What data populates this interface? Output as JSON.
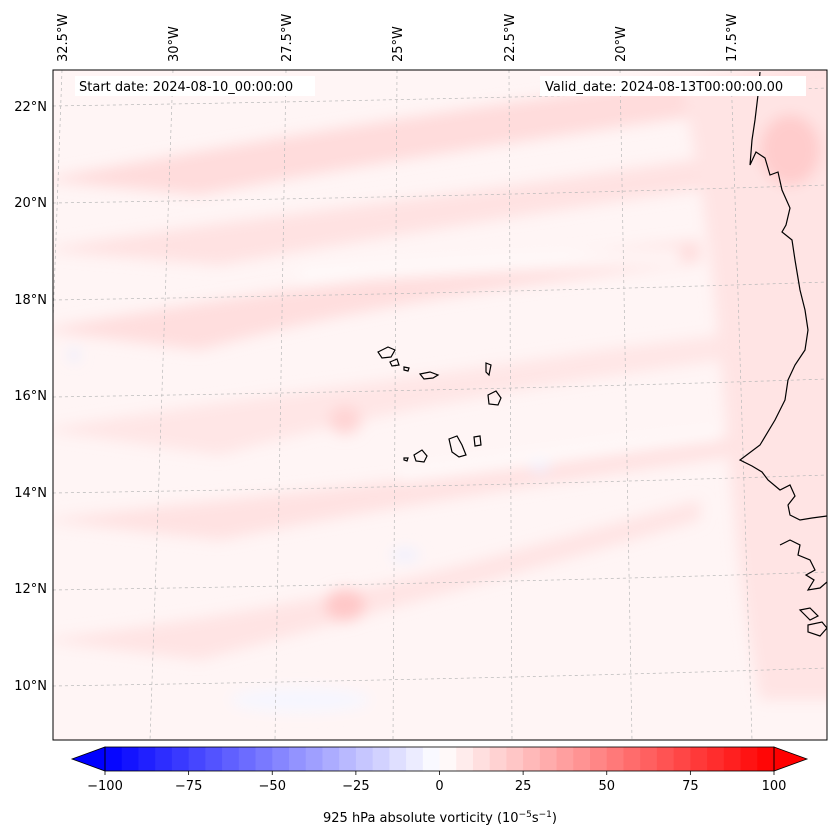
{
  "map": {
    "start_date": "Start date: 2024-08-10_00:00:00",
    "valid_date": "Valid_date: 2024-08-13T00:00:00.00",
    "lon_labels": [
      "32.5°W",
      "30°W",
      "27.5°W",
      "25°W",
      "22.5°W",
      "20°W",
      "17.5°W"
    ],
    "lat_labels": [
      "22°N",
      "20°N",
      "18°N",
      "16°N",
      "14°N",
      "12°N",
      "10°N"
    ],
    "gridlines": true
  },
  "colorbar": {
    "ticks": [
      "−100",
      "−75",
      "−50",
      "−25",
      "0",
      "25",
      "50",
      "75",
      "100"
    ],
    "tick_values": [
      -100,
      -75,
      -50,
      -25,
      0,
      25,
      50,
      75,
      100
    ],
    "range": [
      -100,
      100
    ],
    "extend": "both",
    "colormap": "bwr",
    "label_main": "925 hPa absolute vorticity (10",
    "label_exp1": "−5",
    "label_mid": "s",
    "label_exp2": "−1",
    "label_end": ")"
  },
  "colors": {
    "min": "#0000ff",
    "mid": "#ffffff",
    "max": "#ff0000",
    "coastline": "#000000",
    "gridline": "#b0b0b0"
  }
}
